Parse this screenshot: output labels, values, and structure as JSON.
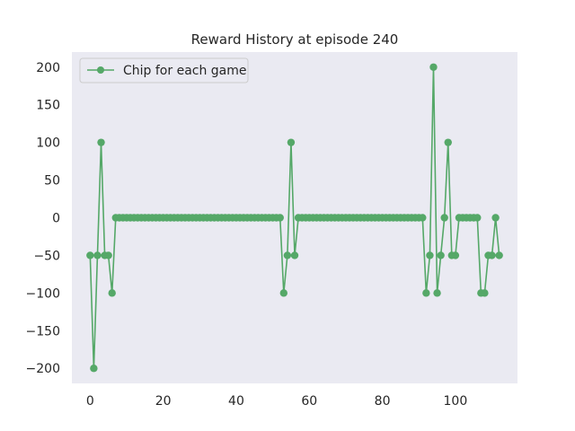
{
  "chart_data": {
    "type": "line",
    "title": "Reward History at episode 240",
    "xlabel": "",
    "ylabel": "",
    "xlim": [
      -5,
      117
    ],
    "ylim": [
      -220,
      220
    ],
    "xticks": [
      0,
      20,
      40,
      60,
      80,
      100
    ],
    "xtick_labels": [
      "0",
      "20",
      "40",
      "60",
      "80",
      "100"
    ],
    "yticks": [
      200,
      150,
      100,
      50,
      0,
      -50,
      -100,
      -150,
      -200
    ],
    "ytick_labels": [
      "200",
      "150",
      "100",
      "50",
      "0",
      "−50",
      "−100",
      "−150",
      "−200"
    ],
    "grid": false,
    "legend_position": "upper-left",
    "background_color": "#EAEAF2",
    "series": [
      {
        "name": "Chip for each game",
        "color": "#55A868",
        "marker": "circle",
        "x": [
          0,
          1,
          2,
          3,
          4,
          5,
          6,
          7,
          8,
          9,
          10,
          11,
          12,
          13,
          14,
          15,
          16,
          17,
          18,
          19,
          20,
          21,
          22,
          23,
          24,
          25,
          26,
          27,
          28,
          29,
          30,
          31,
          32,
          33,
          34,
          35,
          36,
          37,
          38,
          39,
          40,
          41,
          42,
          43,
          44,
          45,
          46,
          47,
          48,
          49,
          50,
          51,
          52,
          53,
          54,
          55,
          56,
          57,
          58,
          59,
          60,
          61,
          62,
          63,
          64,
          65,
          66,
          67,
          68,
          69,
          70,
          71,
          72,
          73,
          74,
          75,
          76,
          77,
          78,
          79,
          80,
          81,
          82,
          83,
          84,
          85,
          86,
          87,
          88,
          89,
          90,
          91,
          92,
          93,
          94,
          95,
          96,
          97,
          98,
          99,
          100,
          101,
          102,
          103,
          104,
          105,
          106,
          107,
          108,
          109,
          110,
          111,
          112
        ],
        "y": [
          -50,
          -200,
          -50,
          100,
          -50,
          -50,
          -100,
          0,
          0,
          0,
          0,
          0,
          0,
          0,
          0,
          0,
          0,
          0,
          0,
          0,
          0,
          0,
          0,
          0,
          0,
          0,
          0,
          0,
          0,
          0,
          0,
          0,
          0,
          0,
          0,
          0,
          0,
          0,
          0,
          0,
          0,
          0,
          0,
          0,
          0,
          0,
          0,
          0,
          0,
          0,
          0,
          0,
          0,
          -100,
          -50,
          100,
          -50,
          0,
          0,
          0,
          0,
          0,
          0,
          0,
          0,
          0,
          0,
          0,
          0,
          0,
          0,
          0,
          0,
          0,
          0,
          0,
          0,
          0,
          0,
          0,
          0,
          0,
          0,
          0,
          0,
          0,
          0,
          0,
          0,
          0,
          0,
          0,
          -100,
          -50,
          200,
          -100,
          -50,
          0,
          100,
          -50,
          -50,
          0,
          0,
          0,
          0,
          0,
          0,
          -100,
          -100,
          -50,
          -50,
          0,
          -50
        ]
      }
    ]
  }
}
